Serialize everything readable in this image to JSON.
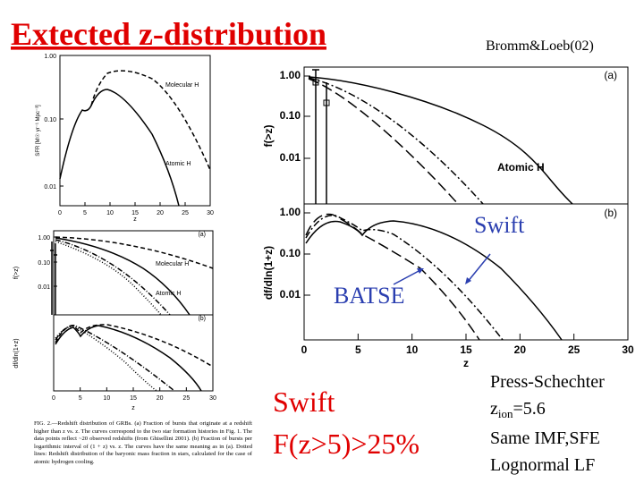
{
  "title": "Extected z-distribution",
  "citation": "Bromm&Loeb(02)",
  "left_figure": {
    "top_panel": {
      "ylabel": "SFR [M☉ yr⁻¹ Mpc⁻³]",
      "xlabel": "z",
      "yticks": [
        "1.00",
        "0.10",
        "0.01"
      ],
      "xticks": [
        "0",
        "5",
        "10",
        "15",
        "20",
        "25",
        "30"
      ],
      "curve_labels": [
        "Molecular H",
        "Atomic H"
      ]
    },
    "middle_panel": {
      "ylabel": "f(>z)",
      "panel_label": "(a)",
      "yticks": [
        "1.00",
        "0.10",
        "0.01"
      ],
      "curve_labels": [
        "Molecular H",
        "Atomic H"
      ]
    },
    "bottom_panel": {
      "ylabel": "df/dln(1+z)",
      "panel_label": "(b)",
      "xlabel": "z",
      "xticks": [
        "0",
        "5",
        "10",
        "15",
        "20",
        "25",
        "30"
      ]
    },
    "caption": "FIG. 2.—Redshift distribution of GRBs. (a) Fraction of bursts that originate at a redshift higher than z vs. z. The curves correspond to the two star formation histories in Fig. 1. The data points reflect ~20 observed redshifts (from Ghisellini 2001). (b) Fraction of bursts per logarithmic interval of (1 + z) vs. z. The curves have the same meaning as in (a). Dotted lines: Redshift distribution of the baryonic mass fraction in stars, calculated for the case of atomic hydrogen cooling."
  },
  "right_figure": {
    "panel_a": {
      "ylabel": "f(>z)",
      "panel_label": "(a)",
      "yticks": [
        "1.00",
        "0.10",
        "0.01"
      ],
      "curve_label": "Atomic H"
    },
    "panel_b": {
      "ylabel": "df/dln(1+z)",
      "panel_label": "(b)",
      "yticks": [
        "1.00",
        "0.10",
        "0.01"
      ],
      "xlabel": "z",
      "xticks": [
        "0",
        "5",
        "10",
        "15",
        "20",
        "25",
        "30"
      ],
      "annotations": [
        "Swift",
        "BATSE"
      ]
    }
  },
  "swift_note": [
    "Swift",
    "F(z>5)>25%"
  ],
  "assumptions": {
    "line1": "Press-Schechter",
    "zion": {
      "base": "z",
      "sub": "ion",
      "rest": "=5.6"
    },
    "line3": "Same IMF,SFE",
    "line4": "Lognormal LF"
  }
}
